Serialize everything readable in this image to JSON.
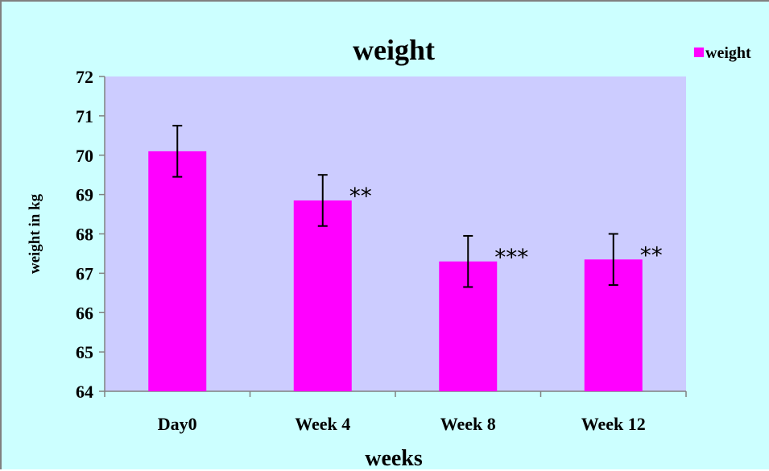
{
  "chart_data": {
    "type": "bar",
    "title": "weight",
    "xlabel": "weeks",
    "ylabel": "weight in kg",
    "categories": [
      "Day0",
      "Week 4",
      "Week 8",
      "Week 12"
    ],
    "series": [
      {
        "name": "weight",
        "values": [
          70.1,
          68.85,
          67.3,
          67.35
        ],
        "error": [
          0.65,
          0.65,
          0.65,
          0.65
        ],
        "annotations": [
          "",
          "**",
          "***",
          "**"
        ]
      }
    ],
    "ylim": [
      64,
      72
    ],
    "yticks": [
      "64",
      "65",
      "66",
      "67",
      "68",
      "69",
      "70",
      "71",
      "72"
    ],
    "grid": false,
    "legend_position": "top-right",
    "colors": {
      "bar": "#ff00ff",
      "plot_bg": "#ccccff",
      "chart_bg": "#ccffff",
      "axis": "#808080",
      "error_bar": "#000000"
    }
  }
}
